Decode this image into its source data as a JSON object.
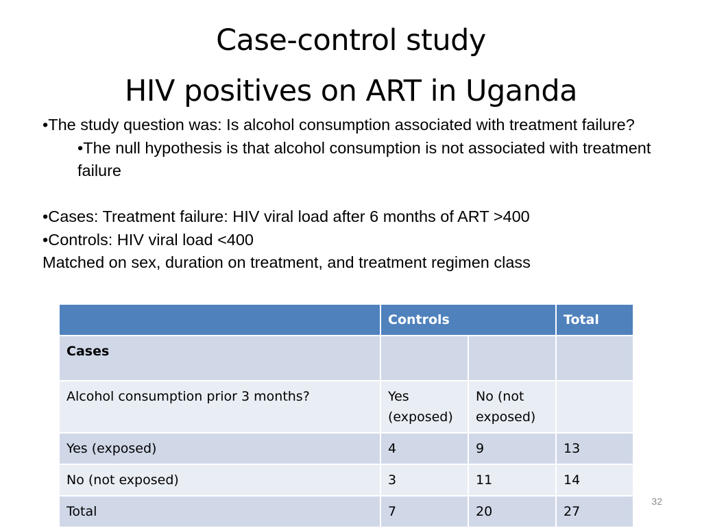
{
  "slide": {
    "title_line1": "Case-control study",
    "title_line2": "HIV positives on ART in Uganda",
    "bullets": {
      "b1": "•The study question was: Is alcohol consumption associated with treatment failure?",
      "b2": "•The null hypothesis is that alcohol consumption is not associated with treatment failure",
      "b3": "•Cases:  Treatment failure: HIV viral load after 6 months of ART >400",
      "b4": "•Controls:  HIV viral load <400",
      "b5": "Matched on sex, duration on treatment, and treatment regimen class"
    },
    "page_number": "32"
  },
  "table": {
    "header": {
      "c1": "",
      "controls": "Controls",
      "total": "Total"
    },
    "cases_row": {
      "label": "Cases",
      "c2": "",
      "c3": "",
      "c4": ""
    },
    "question_row": {
      "label": "Alcohol consumption prior 3 months?",
      "yes": "Yes (exposed)",
      "no": "No (not exposed)",
      "total": ""
    },
    "rows": [
      {
        "label": "Yes (exposed)",
        "yes": "4",
        "no": "9",
        "total": "13"
      },
      {
        "label": "No (not exposed)",
        "yes": "3",
        "no": "11",
        "total": "14"
      },
      {
        "label": "Total",
        "yes": "7",
        "no": "20",
        "total": "27"
      }
    ]
  },
  "colors": {
    "header_blue": "#4f81bd",
    "row_dark": "#d0d8e8",
    "row_light": "#e9edf4"
  }
}
